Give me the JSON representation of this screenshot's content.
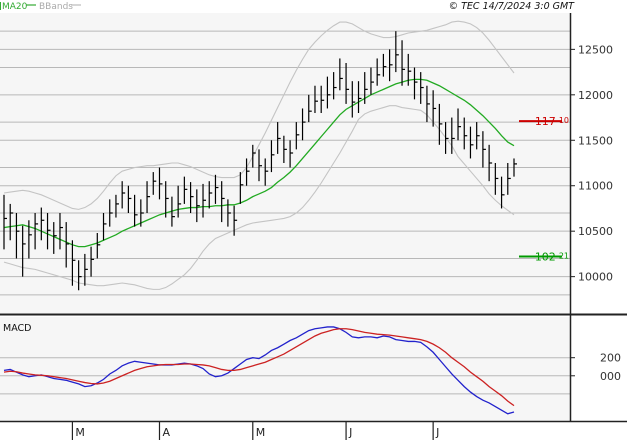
{
  "header": {
    "legend": [
      {
        "label": "MA20",
        "color": "#33aa33"
      },
      {
        "label": "BBands",
        "color": "#bbbbbb"
      }
    ],
    "credit": "© TEC 14/7/2024 3:0 GMT"
  },
  "chart_data": [
    {
      "type": "ohlc",
      "title": "",
      "grid": true,
      "ylim": [
        9600,
        12900
      ],
      "ytick_labels": [
        "12500",
        "12000",
        "11500",
        "11000",
        "10500",
        "10000"
      ],
      "yticks": [
        12500,
        12000,
        11500,
        11000,
        10500,
        10000
      ],
      "xtick_labels": [
        "M",
        "A",
        "M",
        "J",
        "J"
      ],
      "xtick_index": [
        11,
        25,
        40,
        55,
        69
      ],
      "close": [
        10640,
        10700,
        10500,
        10360,
        10460,
        10580,
        10620,
        10510,
        10450,
        10540,
        10360,
        10180,
        10000,
        10080,
        10190,
        10350,
        10580,
        10700,
        10800,
        10920,
        10860,
        10680,
        10700,
        10880,
        11050,
        11020,
        10860,
        10660,
        10800,
        10960,
        10880,
        10780,
        10840,
        10920,
        10980,
        10860,
        10700,
        10620,
        11010,
        11160,
        11360,
        11220,
        11160,
        11340,
        11520,
        11400,
        11360,
        11560,
        11700,
        11820,
        11930,
        11940,
        12000,
        12080,
        12180,
        12060,
        11920,
        11960,
        12060,
        12140,
        12220,
        12310,
        12330,
        12440,
        12280,
        12260,
        12140,
        12080,
        11900,
        11850,
        11680,
        11520,
        11520,
        11650,
        11550,
        11450,
        11550,
        11400,
        11250,
        11080,
        10900,
        11080,
        11240
      ],
      "high": [
        10900,
        10800,
        10700,
        10560,
        10620,
        10700,
        10760,
        10700,
        10600,
        10700,
        10600,
        10400,
        10180,
        10250,
        10330,
        10480,
        10700,
        10850,
        10900,
        11050,
        11000,
        10900,
        10850,
        11050,
        11150,
        11200,
        11050,
        10880,
        11000,
        11100,
        11040,
        10960,
        11020,
        11050,
        11120,
        11050,
        10850,
        10780,
        11150,
        11300,
        11450,
        11400,
        11300,
        11500,
        11700,
        11550,
        11500,
        11700,
        11850,
        12000,
        12100,
        12100,
        12200,
        12250,
        12400,
        12350,
        12150,
        12150,
        12250,
        12300,
        12400,
        12450,
        12500,
        12700,
        12600,
        12450,
        12300,
        12250,
        12100,
        12050,
        11900,
        11700,
        11750,
        11850,
        11750,
        11650,
        11700,
        11600,
        11450,
        11250,
        11100,
        11250,
        11300
      ],
      "low": [
        10300,
        10400,
        10200,
        10000,
        10200,
        10300,
        10400,
        10300,
        10250,
        10300,
        10100,
        9900,
        9850,
        9900,
        10000,
        10200,
        10400,
        10550,
        10650,
        10750,
        10700,
        10550,
        10550,
        10700,
        10900,
        10850,
        10650,
        10550,
        10650,
        10800,
        10700,
        10600,
        10650,
        10750,
        10800,
        10600,
        10550,
        10450,
        10800,
        11000,
        11200,
        11050,
        11000,
        11150,
        11350,
        11250,
        11200,
        11400,
        11500,
        11700,
        11800,
        11800,
        11850,
        11950,
        12050,
        11900,
        11750,
        11800,
        11900,
        12000,
        12100,
        12200,
        12150,
        12250,
        12100,
        12100,
        11950,
        11900,
        11700,
        11650,
        11450,
        11350,
        11350,
        11500,
        11400,
        11300,
        11400,
        11200,
        11050,
        10900,
        10750,
        10900,
        11100
      ],
      "ma20": [
        10540,
        10550,
        10560,
        10570,
        10550,
        10530,
        10500,
        10470,
        10440,
        10410,
        10380,
        10350,
        10330,
        10330,
        10350,
        10370,
        10400,
        10430,
        10460,
        10500,
        10530,
        10560,
        10590,
        10620,
        10650,
        10680,
        10700,
        10720,
        10740,
        10750,
        10760,
        10760,
        10770,
        10770,
        10780,
        10780,
        10790,
        10790,
        10810,
        10840,
        10880,
        10910,
        10940,
        10980,
        11040,
        11090,
        11150,
        11220,
        11300,
        11380,
        11460,
        11540,
        11620,
        11700,
        11780,
        11840,
        11880,
        11920,
        11960,
        12000,
        12030,
        12060,
        12090,
        12120,
        12140,
        12160,
        12170,
        12170,
        12160,
        12130,
        12100,
        12060,
        12020,
        11980,
        11940,
        11890,
        11830,
        11770,
        11700,
        11630,
        11550,
        11480,
        11440
      ],
      "bb_upper": [
        10920,
        10930,
        10940,
        10950,
        10940,
        10920,
        10900,
        10870,
        10840,
        10810,
        10780,
        10750,
        10740,
        10760,
        10800,
        10860,
        10940,
        11030,
        11110,
        11160,
        11180,
        11200,
        11210,
        11220,
        11220,
        11230,
        11240,
        11250,
        11250,
        11230,
        11210,
        11180,
        11150,
        11120,
        11100,
        11090,
        11090,
        11090,
        11120,
        11200,
        11320,
        11450,
        11580,
        11720,
        11860,
        12000,
        12140,
        12270,
        12390,
        12500,
        12580,
        12650,
        12710,
        12760,
        12800,
        12800,
        12780,
        12740,
        12700,
        12670,
        12650,
        12630,
        12630,
        12640,
        12660,
        12680,
        12690,
        12700,
        12710,
        12730,
        12750,
        12770,
        12800,
        12810,
        12800,
        12780,
        12740,
        12680,
        12600,
        12510,
        12420,
        12330,
        12240
      ],
      "bb_lower": [
        10160,
        10140,
        10120,
        10100,
        10090,
        10080,
        10060,
        10040,
        10020,
        10000,
        9980,
        9960,
        9930,
        9920,
        9910,
        9900,
        9900,
        9910,
        9920,
        9930,
        9920,
        9910,
        9890,
        9870,
        9860,
        9860,
        9880,
        9920,
        9970,
        10020,
        10090,
        10180,
        10280,
        10360,
        10420,
        10450,
        10480,
        10510,
        10540,
        10570,
        10590,
        10600,
        10610,
        10620,
        10630,
        10640,
        10660,
        10700,
        10760,
        10840,
        10930,
        11030,
        11140,
        11250,
        11360,
        11480,
        11600,
        11730,
        11790,
        11820,
        11840,
        11860,
        11880,
        11880,
        11860,
        11850,
        11840,
        11830,
        11780,
        11700,
        11620,
        11530,
        11440,
        11320,
        11240,
        11160,
        11080,
        11000,
        10910,
        10840,
        10780,
        10730,
        10680
      ],
      "annotations": [
        {
          "label": "117",
          "label_small": "10",
          "value": 11710,
          "color": "#cc0000"
        },
        {
          "label": "102",
          "label_small": "21",
          "value": 10221,
          "color": "#009900"
        }
      ]
    },
    {
      "type": "line",
      "title": "MACD",
      "grid": true,
      "ylim": [
        -500,
        650
      ],
      "ytick_labels": [
        "200",
        "000"
      ],
      "yticks": [
        200,
        0
      ],
      "series": [
        {
          "color": "#2222cc",
          "values": [
            60,
            70,
            40,
            10,
            -10,
            0,
            10,
            -10,
            -30,
            -40,
            -50,
            -70,
            -90,
            -120,
            -110,
            -80,
            -40,
            20,
            60,
            110,
            140,
            160,
            150,
            140,
            130,
            120,
            120,
            120,
            130,
            140,
            130,
            110,
            80,
            20,
            -10,
            0,
            30,
            80,
            130,
            180,
            200,
            190,
            230,
            280,
            310,
            350,
            390,
            420,
            460,
            500,
            520,
            530,
            540,
            540,
            520,
            480,
            430,
            420,
            430,
            430,
            420,
            440,
            430,
            400,
            390,
            380,
            380,
            370,
            320,
            260,
            180,
            100,
            20,
            -50,
            -120,
            -180,
            -230,
            -270,
            -300,
            -340,
            -380,
            -420,
            -400
          ]
        },
        {
          "color": "#cc2222",
          "values": [
            40,
            50,
            45,
            30,
            20,
            10,
            5,
            0,
            -10,
            -20,
            -30,
            -45,
            -60,
            -75,
            -85,
            -90,
            -80,
            -60,
            -30,
            0,
            30,
            60,
            80,
            100,
            110,
            120,
            125,
            125,
            125,
            130,
            130,
            125,
            120,
            110,
            90,
            70,
            60,
            60,
            70,
            90,
            110,
            130,
            150,
            180,
            210,
            240,
            280,
            320,
            360,
            400,
            440,
            470,
            490,
            510,
            520,
            520,
            510,
            495,
            480,
            470,
            460,
            455,
            450,
            440,
            430,
            420,
            410,
            400,
            380,
            350,
            310,
            260,
            200,
            150,
            100,
            40,
            -10,
            -60,
            -120,
            -170,
            -220,
            -280,
            -330
          ]
        }
      ]
    }
  ]
}
